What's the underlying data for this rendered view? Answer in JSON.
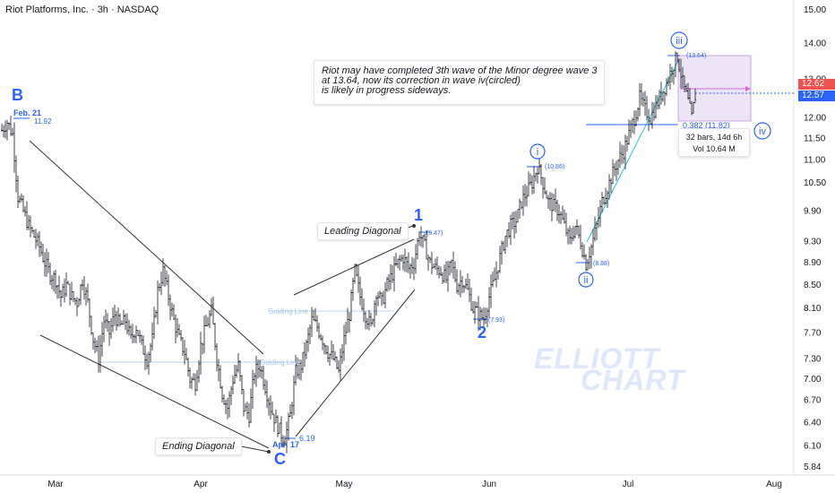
{
  "header": {
    "title": "Riot Platforms, Inc. · 3h · NASDAQ"
  },
  "annotation": {
    "note_lines": [
      "Riot may have completed 3th wave of the Minor degree wave 3",
      "at 13.64, now its correction in wave iv(circled)",
      "is likely in progress sideways."
    ],
    "leading_diagonal": "Leading Diagonal",
    "ending_diagonal": "Ending Diagonal",
    "guiding_line_1": "Guiding Line",
    "guiding_line_2": "Guiding Line",
    "fib_label": "0.382 (11.82)",
    "info_bars": "32 bars, 14d 6h",
    "info_vol": "Vol 10.64 M",
    "watermark_1": "ELLIOTT",
    "watermark_2": "CHART"
  },
  "price_tags": {
    "red": "12.62",
    "blue": "12.57",
    "red_color": "#ef5350",
    "blue_color": "#2962ff"
  },
  "colors": {
    "wave_blue": "#2962ff",
    "up_candle": "#131722",
    "teal_line": "#26c6da",
    "fib_line": "#2962ff",
    "box_fill": "#ede4f6",
    "box_border": "#c9a6e6",
    "arrow": "#d36bd8"
  },
  "chart_data": {
    "type": "candlestick",
    "title": "Riot Platforms, Inc. · 3h · NASDAQ",
    "y_axis": {
      "ticks": [
        15.0,
        14.0,
        13.0,
        12.0,
        11.5,
        11.0,
        10.5,
        9.9,
        9.3,
        8.9,
        8.5,
        8.1,
        7.7,
        7.3,
        7.0,
        6.7,
        6.4,
        6.1,
        5.84
      ],
      "scale": "log",
      "position": "right"
    },
    "x_axis": {
      "ticks": [
        "Mar",
        "Apr",
        "May",
        "Jun",
        "Jul",
        "Aug"
      ]
    },
    "pivots": [
      {
        "wave": "B",
        "label": "Feb. 21",
        "price": 11.92
      },
      {
        "wave": "C",
        "label": "Apr. 17",
        "price": 6.19
      },
      {
        "wave": "1",
        "price_label": "(9.47)",
        "price": 9.47
      },
      {
        "wave": "2",
        "price_label": "(7.93)",
        "price": 7.93
      },
      {
        "wave": "i",
        "price_label": "(10.86)",
        "price": 10.86
      },
      {
        "wave": "ii",
        "price_label": "(8.88)",
        "price": 8.88
      },
      {
        "wave": "iii",
        "price_label": "(13.64)",
        "price": 13.64
      },
      {
        "wave": "iv",
        "price": null
      }
    ],
    "last_price": 12.57,
    "fib_level": {
      "ratio": 0.382,
      "price": 11.82
    },
    "path": [
      [
        2,
        11.7
      ],
      [
        8,
        11.9
      ],
      [
        14,
        11.6
      ],
      [
        20,
        10.2
      ],
      [
        26,
        9.9
      ],
      [
        32,
        9.6
      ],
      [
        38,
        9.4
      ],
      [
        44,
        9.2
      ],
      [
        50,
        8.9
      ],
      [
        56,
        8.7
      ],
      [
        62,
        8.6
      ],
      [
        68,
        8.3
      ],
      [
        74,
        8.5
      ],
      [
        80,
        8.3
      ],
      [
        86,
        8.2
      ],
      [
        92,
        8.6
      ],
      [
        98,
        8.2
      ],
      [
        104,
        7.6
      ],
      [
        110,
        7.3
      ],
      [
        116,
        7.9
      ],
      [
        122,
        7.7
      ],
      [
        128,
        8.0
      ],
      [
        134,
        7.8
      ],
      [
        140,
        7.9
      ],
      [
        146,
        7.6
      ],
      [
        152,
        7.8
      ],
      [
        158,
        7.5
      ],
      [
        164,
        7.3
      ],
      [
        170,
        7.6
      ],
      [
        176,
        8.4
      ],
      [
        182,
        8.75
      ],
      [
        188,
        8.3
      ],
      [
        194,
        7.9
      ],
      [
        200,
        7.6
      ],
      [
        206,
        7.4
      ],
      [
        212,
        7.0
      ],
      [
        218,
        6.95
      ],
      [
        224,
        7.5
      ],
      [
        230,
        7.8
      ],
      [
        236,
        8.05
      ],
      [
        242,
        7.3
      ],
      [
        248,
        6.8
      ],
      [
        254,
        6.6
      ],
      [
        260,
        7.0
      ],
      [
        266,
        7.2
      ],
      [
        272,
        6.6
      ],
      [
        278,
        6.5
      ],
      [
        284,
        7.1
      ],
      [
        290,
        7.2
      ],
      [
        296,
        6.9
      ],
      [
        302,
        6.6
      ],
      [
        308,
        6.4
      ],
      [
        314,
        6.25
      ],
      [
        318,
        6.19
      ],
      [
        324,
        6.5
      ],
      [
        330,
        7.1
      ],
      [
        336,
        7.2
      ],
      [
        342,
        7.5
      ],
      [
        348,
        7.9
      ],
      [
        354,
        7.8
      ],
      [
        360,
        7.6
      ],
      [
        366,
        7.4
      ],
      [
        372,
        7.3
      ],
      [
        378,
        7.1
      ],
      [
        384,
        7.6
      ],
      [
        390,
        8.0
      ],
      [
        396,
        8.75
      ],
      [
        402,
        8.3
      ],
      [
        408,
        8.0
      ],
      [
        414,
        7.8
      ],
      [
        420,
        8.4
      ],
      [
        426,
        8.2
      ],
      [
        432,
        8.5
      ],
      [
        438,
        8.7
      ],
      [
        444,
        8.9
      ],
      [
        450,
        9.0
      ],
      [
        456,
        8.8
      ],
      [
        462,
        8.9
      ],
      [
        468,
        9.47
      ],
      [
        474,
        9.2
      ],
      [
        480,
        8.9
      ],
      [
        486,
        8.8
      ],
      [
        492,
        8.75
      ],
      [
        498,
        8.6
      ],
      [
        504,
        8.9
      ],
      [
        510,
        8.5
      ],
      [
        516,
        8.6
      ],
      [
        522,
        8.4
      ],
      [
        528,
        8.1
      ],
      [
        534,
        8.0
      ],
      [
        540,
        7.93
      ],
      [
        546,
        8.3
      ],
      [
        552,
        8.6
      ],
      [
        558,
        9.0
      ],
      [
        564,
        9.4
      ],
      [
        570,
        9.6
      ],
      [
        576,
        9.7
      ],
      [
        582,
        10.1
      ],
      [
        588,
        10.3
      ],
      [
        594,
        10.5
      ],
      [
        600,
        10.86
      ],
      [
        606,
        10.5
      ],
      [
        612,
        10.1
      ],
      [
        618,
        10.0
      ],
      [
        624,
        9.9
      ],
      [
        630,
        9.6
      ],
      [
        636,
        9.3
      ],
      [
        642,
        9.6
      ],
      [
        648,
        9.3
      ],
      [
        654,
        8.88
      ],
      [
        660,
        9.2
      ],
      [
        666,
        9.6
      ],
      [
        672,
        10.1
      ],
      [
        678,
        10.4
      ],
      [
        684,
        10.7
      ],
      [
        690,
        11.0
      ],
      [
        696,
        11.2
      ],
      [
        702,
        11.6
      ],
      [
        708,
        12.0
      ],
      [
        714,
        12.5
      ],
      [
        720,
        12.2
      ],
      [
        726,
        12.0
      ],
      [
        732,
        12.3
      ],
      [
        738,
        12.6
      ],
      [
        744,
        12.9
      ],
      [
        750,
        13.3
      ],
      [
        756,
        13.64
      ],
      [
        762,
        12.9
      ],
      [
        768,
        12.4
      ],
      [
        772,
        12.0
      ],
      [
        776,
        12.57
      ]
    ]
  }
}
